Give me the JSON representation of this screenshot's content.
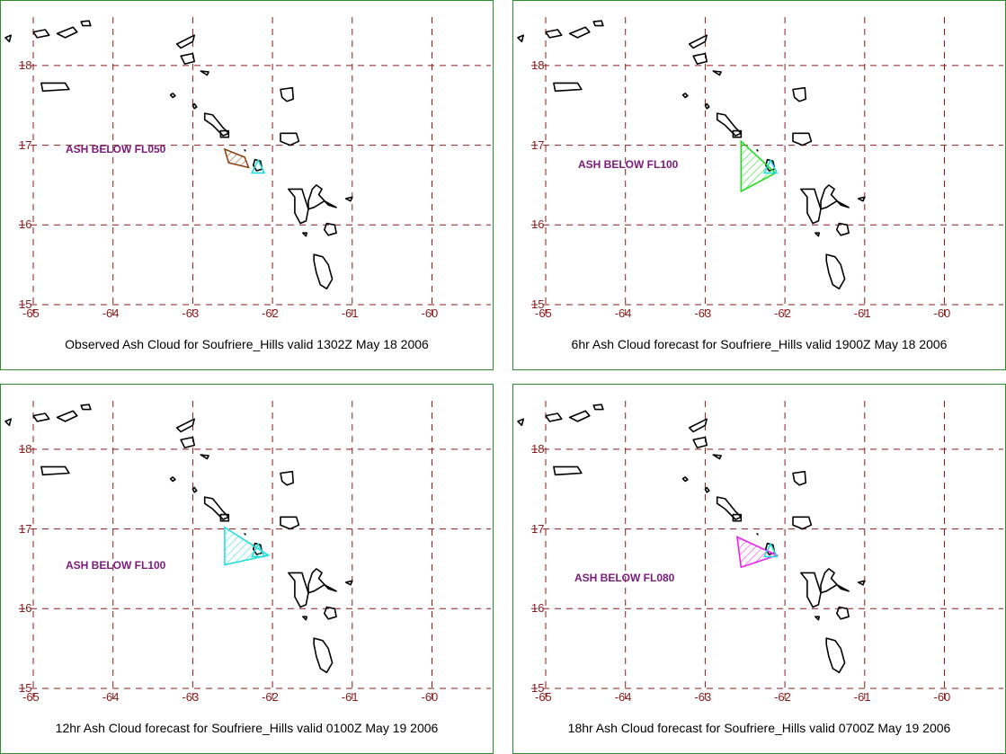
{
  "panels": [
    {
      "caption": "Observed Ash Cloud for Soufriere_Hills valid 1302Z May 18 2006",
      "ash_label": "ASH BELOW FL050",
      "cloud_color": "#8b4513",
      "cloud": [
        [
          -62.6,
          16.95
        ],
        [
          -62.35,
          16.85
        ],
        [
          -62.3,
          16.72
        ],
        [
          -62.55,
          16.78
        ]
      ]
    },
    {
      "caption": "6hr Ash Cloud forecast for Soufriere_Hills valid 1900Z May 18 2006",
      "ash_label": "ASH BELOW FL100",
      "cloud_color": "#22dd22",
      "cloud": [
        [
          -62.55,
          17.05
        ],
        [
          -62.12,
          16.65
        ],
        [
          -62.55,
          16.42
        ]
      ]
    },
    {
      "caption": "12hr Ash Cloud forecast for Soufriere_Hills valid 0100Z May 19 2006",
      "ash_label": "ASH BELOW FL100",
      "cloud_color": "#22dddd",
      "cloud": [
        [
          -62.6,
          17.02
        ],
        [
          -62.05,
          16.67
        ],
        [
          -62.6,
          16.55
        ]
      ]
    },
    {
      "caption": "18hr Ash Cloud forecast for Soufriere_Hills valid 0700Z May 19 2006",
      "ash_label": "ASH BELOW FL080",
      "cloud_color": "#ee22ee",
      "cloud": [
        [
          -62.6,
          16.9
        ],
        [
          -62.1,
          16.67
        ],
        [
          -62.55,
          16.52
        ]
      ]
    }
  ],
  "map": {
    "lon_ticks": [
      "-65",
      "-64",
      "-63",
      "-62",
      "-61",
      "-60"
    ],
    "lat_ticks": [
      "18",
      "17",
      "16",
      "15"
    ],
    "lon_values": [
      -65,
      -64,
      -63,
      -62,
      -61,
      -60
    ],
    "lat_values": [
      18,
      17,
      16,
      15
    ],
    "extent": {
      "lon_min": -65,
      "lon_max": -59,
      "lat_min": 15,
      "lat_max": 18.6
    },
    "volcano_color": "#22dddd",
    "grid_color": "#8b1a1a"
  }
}
